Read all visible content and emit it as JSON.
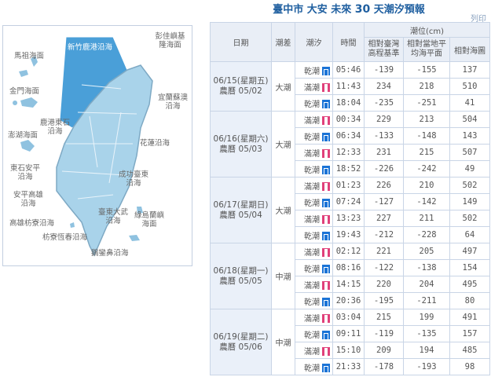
{
  "header": {
    "title_prefix": "臺中市 大安 未來 ",
    "title_days": "30",
    "title_suffix": " 天潮汐預報",
    "print_label": "列印"
  },
  "map": {
    "selected": "新竹鹿港沿海",
    "colors": {
      "selected": "#4a9fd8",
      "land": "#a9d3ea",
      "land_dark": "#8fc2e0",
      "border": "#e8f3fa"
    },
    "labels": [
      "新竹鹿港沿海",
      "彭佳嶼基隆海面",
      "馬祖海面",
      "金門海面",
      "宜蘭蘇澳沿海",
      "鹿港東石沿海",
      "澎湖海面",
      "花蓮沿海",
      "東石安平沿海",
      "成功臺東沿海",
      "安平高雄沿海",
      "臺東大武沿海",
      "綠島蘭嶼海面",
      "高雄枋寮沿海",
      "枋寮恆春沿海",
      "鵝鑾鼻沿海"
    ]
  },
  "table": {
    "headers": {
      "date": "日期",
      "range": "潮差",
      "tide": "潮汐",
      "time": "時間",
      "level": "潮位(cm)",
      "c1": "相對臺灣高程基準",
      "c2": "相對當地平均海平面",
      "c3": "相對海圖"
    },
    "icons": {
      "乾潮": "low-tide-icon",
      "滿潮": "high-tide-icon"
    },
    "days": [
      {
        "date": "06/15(星期五)",
        "lunar": "農曆 05/02",
        "range": "大潮",
        "rows": [
          {
            "tide": "乾潮",
            "time": "05:46",
            "c1": "-139",
            "c2": "-155",
            "c3": "137"
          },
          {
            "tide": "滿潮",
            "time": "11:43",
            "c1": "234",
            "c2": "218",
            "c3": "510"
          },
          {
            "tide": "乾潮",
            "time": "18:04",
            "c1": "-235",
            "c2": "-251",
            "c3": "41"
          }
        ]
      },
      {
        "date": "06/16(星期六)",
        "lunar": "農曆 05/03",
        "range": "大潮",
        "rows": [
          {
            "tide": "滿潮",
            "time": "00:34",
            "c1": "229",
            "c2": "213",
            "c3": "504"
          },
          {
            "tide": "乾潮",
            "time": "06:34",
            "c1": "-133",
            "c2": "-148",
            "c3": "143"
          },
          {
            "tide": "滿潮",
            "time": "12:33",
            "c1": "231",
            "c2": "215",
            "c3": "507"
          },
          {
            "tide": "乾潮",
            "time": "18:52",
            "c1": "-226",
            "c2": "-242",
            "c3": "49"
          }
        ]
      },
      {
        "date": "06/17(星期日)",
        "lunar": "農曆 05/04",
        "range": "大潮",
        "rows": [
          {
            "tide": "滿潮",
            "time": "01:23",
            "c1": "226",
            "c2": "210",
            "c3": "502"
          },
          {
            "tide": "乾潮",
            "time": "07:24",
            "c1": "-127",
            "c2": "-142",
            "c3": "149"
          },
          {
            "tide": "滿潮",
            "time": "13:23",
            "c1": "227",
            "c2": "211",
            "c3": "502"
          },
          {
            "tide": "乾潮",
            "time": "19:43",
            "c1": "-212",
            "c2": "-228",
            "c3": "64"
          }
        ]
      },
      {
        "date": "06/18(星期一)",
        "lunar": "農曆 05/05",
        "range": "中潮",
        "rows": [
          {
            "tide": "滿潮",
            "time": "02:12",
            "c1": "221",
            "c2": "205",
            "c3": "497"
          },
          {
            "tide": "乾潮",
            "time": "08:16",
            "c1": "-122",
            "c2": "-138",
            "c3": "154"
          },
          {
            "tide": "滿潮",
            "time": "14:15",
            "c1": "220",
            "c2": "204",
            "c3": "495"
          },
          {
            "tide": "乾潮",
            "time": "20:36",
            "c1": "-195",
            "c2": "-211",
            "c3": "80"
          }
        ]
      },
      {
        "date": "06/19(星期二)",
        "lunar": "農曆 05/06",
        "range": "中潮",
        "rows": [
          {
            "tide": "滿潮",
            "time": "03:04",
            "c1": "215",
            "c2": "199",
            "c3": "491"
          },
          {
            "tide": "乾潮",
            "time": "09:11",
            "c1": "-119",
            "c2": "-135",
            "c3": "157"
          },
          {
            "tide": "滿潮",
            "time": "15:10",
            "c1": "209",
            "c2": "194",
            "c3": "485"
          },
          {
            "tide": "乾潮",
            "time": "21:33",
            "c1": "-178",
            "c2": "-193",
            "c3": "98"
          }
        ]
      }
    ]
  }
}
